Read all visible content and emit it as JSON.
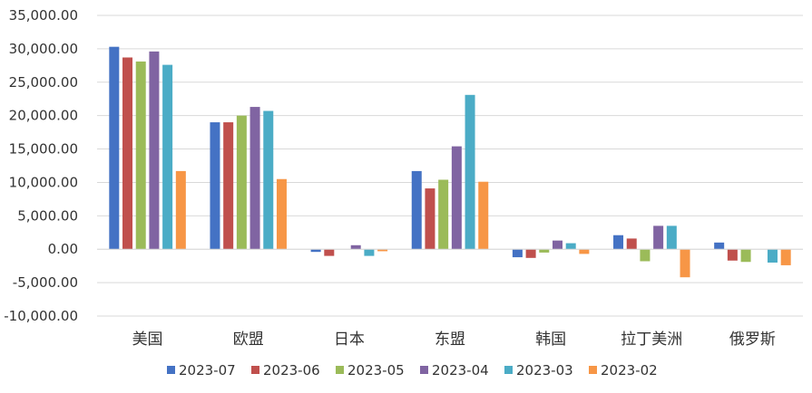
{
  "chart_data": {
    "type": "bar",
    "title": "",
    "xlabel": "",
    "ylabel": "",
    "categories": [
      "美国",
      "欧盟",
      "日本",
      "东盟",
      "韩国",
      "拉丁美洲",
      "俄罗斯"
    ],
    "ylim": [
      -10000,
      35000
    ],
    "yticks": [
      35000,
      30000,
      25000,
      20000,
      15000,
      10000,
      5000,
      0,
      -5000,
      -10000
    ],
    "ytick_labels": [
      "35,000.00",
      "30,000.00",
      "25,000.00",
      "20,000.00",
      "15,000.00",
      "10,000.00",
      "5,000.00",
      "0.00",
      "-5,000.00",
      "-10,000.00"
    ],
    "grid": true,
    "legend_position": "bottom",
    "series": [
      {
        "name": "2023-07",
        "color": "#4472C4",
        "values": [
          30300,
          19000,
          -400,
          11700,
          -1200,
          2100,
          1000
        ]
      },
      {
        "name": "2023-06",
        "color": "#C0504D",
        "values": [
          28700,
          19000,
          -1000,
          9100,
          -1300,
          1600,
          -1700
        ]
      },
      {
        "name": "2023-05",
        "color": "#9BBB59",
        "values": [
          28100,
          20000,
          0,
          10400,
          -500,
          -1800,
          -1900
        ]
      },
      {
        "name": "2023-04",
        "color": "#8064A2",
        "values": [
          29600,
          21300,
          600,
          15400,
          1300,
          3500,
          0
        ]
      },
      {
        "name": "2023-03",
        "color": "#4BACC6",
        "values": [
          27600,
          20700,
          -1000,
          23100,
          900,
          3500,
          -2000
        ]
      },
      {
        "name": "2023-02",
        "color": "#F79646",
        "values": [
          11700,
          10500,
          -300,
          10100,
          -700,
          -4200,
          -2400
        ]
      }
    ]
  }
}
